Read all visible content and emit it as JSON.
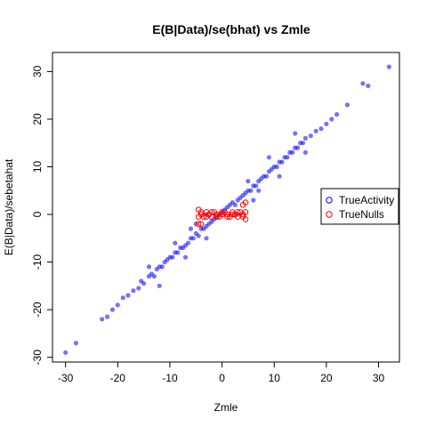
{
  "chart_data": {
    "type": "scatter",
    "title": "E(B|Data)/se(bhat) vs Zmle",
    "xlabel": "Zmle",
    "ylabel": "E(B|Data)/sebetahat",
    "xlim": [
      -32.5,
      34
    ],
    "ylim": [
      -31,
      34
    ],
    "x_ticks": [
      -30,
      -20,
      -10,
      0,
      10,
      20,
      30
    ],
    "y_ticks": [
      -30,
      -20,
      -10,
      0,
      10,
      20,
      30
    ],
    "grid": false,
    "legend": {
      "position": "right",
      "entries": [
        {
          "label": "TrueActivity",
          "color": "#0000ff"
        },
        {
          "label": "TrueNulls",
          "color": "#ff0000"
        }
      ]
    },
    "series": [
      {
        "name": "TrueActivity",
        "color": "#0000ff",
        "marker": "filled circle, semi-transparent",
        "points": [
          [
            -30,
            -29
          ],
          [
            -28,
            -27
          ],
          [
            -23,
            -22
          ],
          [
            -22,
            -21.5
          ],
          [
            -21,
            -20
          ],
          [
            -20,
            -19
          ],
          [
            -19,
            -17.5
          ],
          [
            -18,
            -17
          ],
          [
            -17,
            -16
          ],
          [
            -16,
            -15.5
          ],
          [
            -15.5,
            -14
          ],
          [
            -15,
            -14.5
          ],
          [
            -14,
            -13
          ],
          [
            -13.5,
            -12.5
          ],
          [
            -13,
            -13
          ],
          [
            -12.5,
            -11.5
          ],
          [
            -12,
            -11
          ],
          [
            -11.5,
            -11
          ],
          [
            -11,
            -10
          ],
          [
            -10.5,
            -9.5
          ],
          [
            -10,
            -9
          ],
          [
            -9.5,
            -9
          ],
          [
            -9,
            -8
          ],
          [
            -8.5,
            -8
          ],
          [
            -8,
            -7
          ],
          [
            -7.5,
            -7
          ],
          [
            -7,
            -6.5
          ],
          [
            -6.5,
            -6
          ],
          [
            -6,
            -5
          ],
          [
            -5.5,
            -5
          ],
          [
            -5,
            -4
          ],
          [
            -4.5,
            -4.5
          ],
          [
            -4,
            -3
          ],
          [
            -3.5,
            -3
          ],
          [
            -3,
            -2.5
          ],
          [
            -2.5,
            -2
          ],
          [
            -2,
            -1.5
          ],
          [
            -1.5,
            -1
          ],
          [
            -1,
            -0.5
          ],
          [
            -0.5,
            0
          ],
          [
            0,
            0.5
          ],
          [
            0.5,
            1
          ],
          [
            1,
            1.5
          ],
          [
            1.5,
            2
          ],
          [
            2,
            2.5
          ],
          [
            2.5,
            2
          ],
          [
            3,
            3
          ],
          [
            3.5,
            3.5
          ],
          [
            4,
            4
          ],
          [
            4.5,
            4.5
          ],
          [
            5,
            5
          ],
          [
            5.5,
            5
          ],
          [
            6,
            6
          ],
          [
            6.5,
            6
          ],
          [
            7,
            7
          ],
          [
            7.5,
            7.5
          ],
          [
            8,
            8
          ],
          [
            8.5,
            8
          ],
          [
            9,
            9
          ],
          [
            9.5,
            9.5
          ],
          [
            10,
            10
          ],
          [
            10.5,
            10
          ],
          [
            11,
            11
          ],
          [
            11.5,
            11
          ],
          [
            12,
            12
          ],
          [
            12.5,
            12
          ],
          [
            13,
            13
          ],
          [
            13.5,
            13
          ],
          [
            14,
            14
          ],
          [
            14.5,
            14
          ],
          [
            15,
            15
          ],
          [
            15.5,
            15
          ],
          [
            16,
            16
          ],
          [
            17,
            16.5
          ],
          [
            18,
            17.5
          ],
          [
            19,
            18
          ],
          [
            20,
            19
          ],
          [
            21,
            20
          ],
          [
            22,
            21
          ],
          [
            24,
            23
          ],
          [
            27,
            27.5
          ],
          [
            28,
            27
          ],
          [
            32,
            31
          ],
          [
            -9,
            -6
          ],
          [
            -7,
            -9
          ],
          [
            -5,
            -2
          ],
          [
            -3,
            -5
          ],
          [
            5,
            7
          ],
          [
            7,
            5
          ],
          [
            9,
            12
          ],
          [
            11,
            8
          ],
          [
            14,
            17
          ],
          [
            16,
            13
          ],
          [
            -14,
            -11
          ],
          [
            -12,
            -15
          ],
          [
            3,
            0
          ],
          [
            -3,
            0
          ],
          [
            6,
            3
          ],
          [
            -6,
            -3
          ]
        ]
      },
      {
        "name": "TrueNulls",
        "color": "#ff0000",
        "marker": "open circle",
        "points": [
          [
            -4.5,
            -0.5
          ],
          [
            -4,
            0
          ],
          [
            -3.5,
            -0.5
          ],
          [
            -3,
            0.5
          ],
          [
            -2.5,
            0
          ],
          [
            -2,
            -0.5
          ],
          [
            -1.5,
            0.5
          ],
          [
            -1,
            0
          ],
          [
            -0.5,
            -0.5
          ],
          [
            0,
            0
          ],
          [
            0.5,
            0.5
          ],
          [
            1,
            0
          ],
          [
            1.5,
            -0.5
          ],
          [
            2,
            0.5
          ],
          [
            2.5,
            0
          ],
          [
            3,
            -0.5
          ],
          [
            3.5,
            0.5
          ],
          [
            4,
            0
          ],
          [
            4.5,
            0.5
          ],
          [
            -4,
            0.5
          ],
          [
            -3,
            -0.5
          ],
          [
            -2,
            0.5
          ],
          [
            -1,
            -0.5
          ],
          [
            0,
            0.5
          ],
          [
            1,
            -0.5
          ],
          [
            2,
            0
          ],
          [
            3,
            0.5
          ],
          [
            4,
            -0.5
          ],
          [
            -4.5,
            -2
          ],
          [
            -4,
            -2
          ],
          [
            4.5,
            2.5
          ],
          [
            4,
            2
          ],
          [
            -4.5,
            1
          ],
          [
            4.5,
            -1
          ]
        ]
      }
    ]
  }
}
